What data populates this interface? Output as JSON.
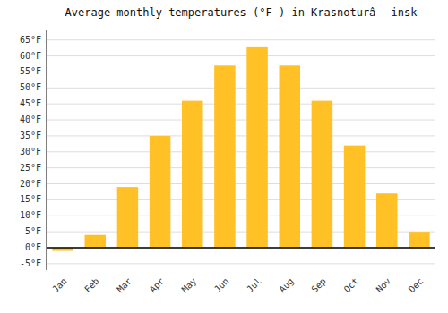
{
  "chart_data": {
    "type": "bar",
    "title": "Average monthly temperatures (°F ) in Krasnoturâ insk",
    "categories": [
      "Jan",
      "Feb",
      "Mar",
      "Apr",
      "May",
      "Jun",
      "Jul",
      "Aug",
      "Sep",
      "Oct",
      "Nov",
      "Dec"
    ],
    "values": [
      -1,
      4,
      19,
      35,
      46,
      57,
      63,
      57,
      46,
      32,
      17,
      5
    ],
    "color": "#FFC125",
    "ylim": [
      -7,
      68
    ],
    "yticks": [
      {
        "value": -5,
        "label": "-5°F"
      },
      {
        "value": 0,
        "label": "0°F"
      },
      {
        "value": 5,
        "label": "5°F"
      },
      {
        "value": 10,
        "label": "10°F"
      },
      {
        "value": 15,
        "label": "15°F"
      },
      {
        "value": 20,
        "label": "20°F"
      },
      {
        "value": 25,
        "label": "25°F"
      },
      {
        "value": 30,
        "label": "30°F"
      },
      {
        "value": 35,
        "label": "35°F"
      },
      {
        "value": 40,
        "label": "40°F"
      },
      {
        "value": 45,
        "label": "45°F"
      },
      {
        "value": 50,
        "label": "50°F"
      },
      {
        "value": 55,
        "label": "55°F"
      },
      {
        "value": 60,
        "label": "60°F"
      },
      {
        "value": 65,
        "label": "65°F"
      }
    ],
    "grid": true
  }
}
